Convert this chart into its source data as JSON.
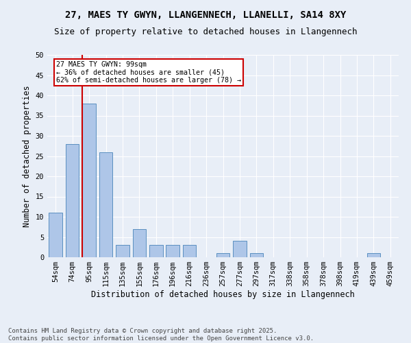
{
  "title1": "27, MAES TY GWYN, LLANGENNECH, LLANELLI, SA14 8XY",
  "title2": "Size of property relative to detached houses in Llangennech",
  "xlabel": "Distribution of detached houses by size in Llangennech",
  "ylabel": "Number of detached properties",
  "categories": [
    "54sqm",
    "74sqm",
    "95sqm",
    "115sqm",
    "135sqm",
    "155sqm",
    "176sqm",
    "196sqm",
    "216sqm",
    "236sqm",
    "257sqm",
    "277sqm",
    "297sqm",
    "317sqm",
    "338sqm",
    "358sqm",
    "378sqm",
    "398sqm",
    "419sqm",
    "439sqm",
    "459sqm"
  ],
  "values": [
    11,
    28,
    38,
    26,
    3,
    7,
    3,
    3,
    3,
    0,
    1,
    4,
    1,
    0,
    0,
    0,
    0,
    0,
    0,
    1,
    0
  ],
  "bar_color": "#aec6e8",
  "bar_edge_color": "#5a8fc0",
  "redline_index": 2,
  "annotation_text": "27 MAES TY GWYN: 99sqm\n← 36% of detached houses are smaller (45)\n62% of semi-detached houses are larger (78) →",
  "annotation_box_color": "#ffffff",
  "annotation_box_edge": "#cc0000",
  "redline_color": "#cc0000",
  "ylim": [
    0,
    50
  ],
  "yticks": [
    0,
    5,
    10,
    15,
    20,
    25,
    30,
    35,
    40,
    45,
    50
  ],
  "background_color": "#e8eef7",
  "plot_bg_color": "#e8eef7",
  "footer1": "Contains HM Land Registry data © Crown copyright and database right 2025.",
  "footer2": "Contains public sector information licensed under the Open Government Licence v3.0.",
  "title_fontsize": 10,
  "subtitle_fontsize": 9,
  "tick_fontsize": 7.5,
  "label_fontsize": 8.5,
  "footer_fontsize": 6.5
}
